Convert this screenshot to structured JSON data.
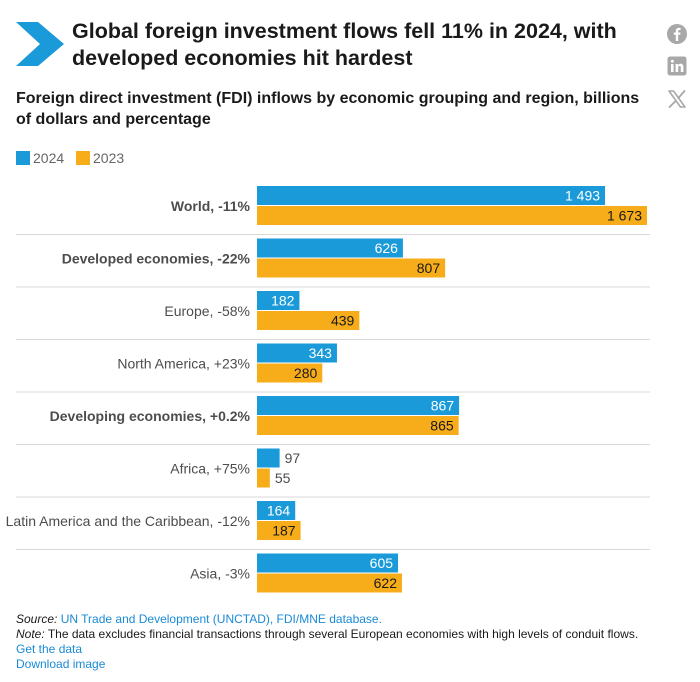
{
  "header": {
    "title": "Global foreign investment flows fell 11% in 2024, with developed economies hit hardest",
    "subtitle": "Foreign direct investment (FDI) inflows by economic grouping and region, billions of dollars and percentage"
  },
  "social": {
    "icons": [
      "facebook-icon",
      "linkedin-icon",
      "x-icon"
    ]
  },
  "colors": {
    "series_2024": "#1a9ad9",
    "series_2023": "#f7ac19",
    "logo": "#1a9ad9",
    "icon": "#a8a8a8",
    "link": "#1a8ad6"
  },
  "chart_data": {
    "type": "bar",
    "orientation": "horizontal",
    "series": [
      {
        "name": "2024",
        "values": [
          1493,
          626,
          182,
          343,
          867,
          97,
          164,
          605
        ]
      },
      {
        "name": "2023",
        "values": [
          1673,
          807,
          439,
          280,
          865,
          55,
          187,
          622
        ]
      }
    ],
    "value_labels_2024": [
      "1 493",
      "626",
      "182",
      "343",
      "867",
      "97",
      "164",
      "605"
    ],
    "value_labels_2023": [
      "1 673",
      "807",
      "439",
      "280",
      "865",
      "55",
      "187",
      "622"
    ],
    "categories": [
      "World, -11%",
      "Developed economies, -22%",
      "Europe, -58%",
      "North America, +23%",
      "Developing economies, +0.2%",
      "Africa, +75%",
      "Latin America and the Caribbean, -12%",
      "Asia, -3%"
    ],
    "bold_categories": [
      true,
      true,
      false,
      false,
      true,
      false,
      false,
      false
    ],
    "xlim": [
      0,
      1673
    ],
    "grid": false,
    "legend_position": "top-left"
  },
  "footer": {
    "source_label": "Source:",
    "source_text": "UN Trade and Development (UNCTAD), FDI/MNE database.",
    "note_label": "Note:",
    "note_text": "The data excludes financial transactions through several European economies with high levels of conduit flows.",
    "get_data": "Get the data",
    "download_image": "Download image"
  }
}
